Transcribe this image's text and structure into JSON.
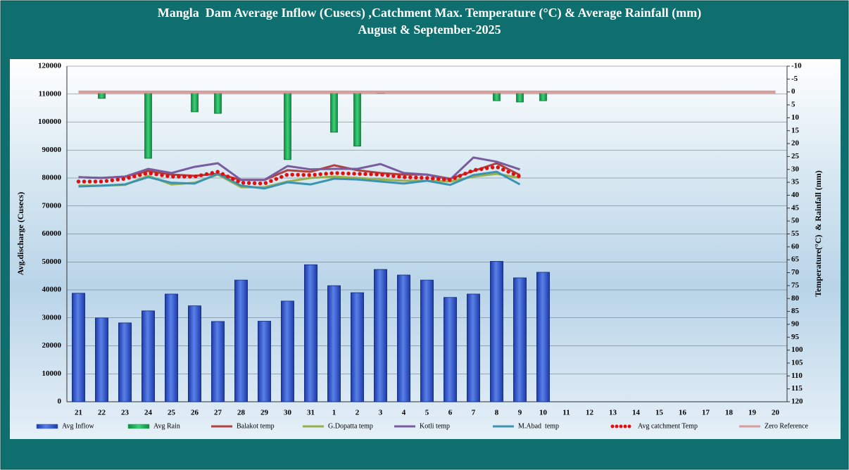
{
  "chart_data": {
    "type": "bar",
    "title": "Mangla  Dam Average Inflow (Cusecs) ,Catchment Max. Temperature (°C) & Average Rainfall (mm)",
    "subtitle": "August & September-2025",
    "y_label": "Avg.discharge (Cusecs)",
    "y2_label": "Temperature(°C)  & Rainfall (mm)",
    "categories": [
      "21",
      "22",
      "23",
      "24",
      "25",
      "26",
      "27",
      "28",
      "29",
      "30",
      "31",
      "1",
      "2",
      "3",
      "4",
      "5",
      "6",
      "7",
      "8",
      "9",
      "10",
      "11",
      "12",
      "13",
      "14",
      "15",
      "16",
      "17",
      "18",
      "19",
      "20"
    ],
    "ylim": [
      0,
      120000
    ],
    "yticks": [
      0,
      10000,
      20000,
      30000,
      40000,
      50000,
      60000,
      70000,
      80000,
      90000,
      100000,
      110000,
      120000
    ],
    "y2lim": [
      -10,
      120
    ],
    "y2_reversed": true,
    "y2ticks": [
      -10,
      -5,
      0,
      5,
      10,
      15,
      20,
      25,
      30,
      35,
      40,
      45,
      50,
      55,
      60,
      65,
      70,
      75,
      80,
      85,
      90,
      95,
      100,
      105,
      110,
      115,
      120
    ],
    "grid": true,
    "legend": "bottom",
    "series": [
      {
        "name": "Avg Inflow",
        "type": "bar",
        "color": "#3a5fd0",
        "values": [
          38800,
          30000,
          28200,
          32500,
          38500,
          34300,
          28700,
          43500,
          28800,
          36000,
          49000,
          41500,
          39000,
          47300,
          45300,
          43500,
          37300,
          38500,
          50200,
          44300,
          46300,
          null,
          null,
          null,
          null,
          null,
          null,
          null,
          null,
          null,
          null
        ]
      },
      {
        "name": "Avg Rain",
        "type": "bar",
        "axis": "y2",
        "color": "#22b35a",
        "values": [
          0,
          2.5,
          0.3,
          25.7,
          0.2,
          7.7,
          8.3,
          0.2,
          0.2,
          26.2,
          0,
          15.6,
          21,
          0.5,
          0,
          0,
          0,
          0.2,
          3.4,
          3.9,
          3.4,
          null,
          null,
          null,
          null,
          null,
          null,
          null,
          null,
          null,
          null
        ]
      },
      {
        "name": "Balakot temp",
        "type": "line",
        "axis": "y2",
        "color": "#b0413e",
        "values": [
          33,
          33.3,
          32.8,
          30.6,
          32,
          32.5,
          31.7,
          34.1,
          34.1,
          30.3,
          30.9,
          28.4,
          30.3,
          31.4,
          32,
          32,
          33.6,
          30.6,
          27.6,
          32.2,
          null,
          null,
          null,
          null,
          null,
          null,
          null,
          null,
          null,
          null,
          null
        ]
      },
      {
        "name": "G.Dopatta temp",
        "type": "line",
        "axis": "y2",
        "color": "#98b04a",
        "values": [
          36.3,
          36.3,
          36,
          32.5,
          35.8,
          35.2,
          32,
          36.9,
          36.9,
          34.7,
          33.3,
          32.8,
          33.3,
          33.9,
          34.4,
          34.4,
          34.7,
          32.8,
          31.7,
          33.3,
          null,
          null,
          null,
          null,
          null,
          null,
          null,
          null,
          null,
          null,
          null
        ]
      },
      {
        "name": "Kotli temp",
        "type": "line",
        "axis": "y2",
        "color": "#7a5c9e",
        "values": [
          33,
          33.3,
          32.8,
          29.8,
          31.4,
          29,
          27.6,
          34.1,
          34.1,
          28.7,
          30,
          29.8,
          29.8,
          27.9,
          31.4,
          32,
          33.9,
          25.4,
          27,
          30,
          null,
          null,
          null,
          null,
          null,
          null,
          null,
          null,
          null,
          null,
          null
        ]
      },
      {
        "name": "M.Abad  temp",
        "type": "line",
        "axis": "y2",
        "color": "#3b93b0",
        "values": [
          36.6,
          36.3,
          35.8,
          33,
          35.2,
          35.5,
          31.7,
          36.3,
          37.4,
          35,
          35.8,
          33.6,
          33.9,
          34.7,
          35.5,
          34.4,
          36,
          32.2,
          30.9,
          35.8,
          null,
          null,
          null,
          null,
          null,
          null,
          null,
          null,
          null,
          null,
          null
        ]
      },
      {
        "name": "Avg catchment Temp",
        "type": "line",
        "style": "dotted",
        "axis": "y2",
        "color": "#e01010",
        "values": [
          34.7,
          34.7,
          33.6,
          31.4,
          32.8,
          32.8,
          30.9,
          35.2,
          35.5,
          32,
          32.2,
          31.4,
          31.7,
          32,
          33,
          33.3,
          34.1,
          30.3,
          29,
          32.8,
          null,
          null,
          null,
          null,
          null,
          null,
          null,
          null,
          null,
          null,
          null
        ]
      },
      {
        "name": "Zero Reference",
        "type": "line",
        "axis": "y2",
        "color": "#d99a9a",
        "width": 4,
        "values": [
          0,
          0,
          0,
          0,
          0,
          0,
          0,
          0,
          0,
          0,
          0,
          0,
          0,
          0,
          0,
          0,
          0,
          0,
          0,
          0,
          0,
          0,
          0,
          0,
          0,
          0,
          0,
          0,
          0,
          0,
          0
        ]
      }
    ]
  }
}
